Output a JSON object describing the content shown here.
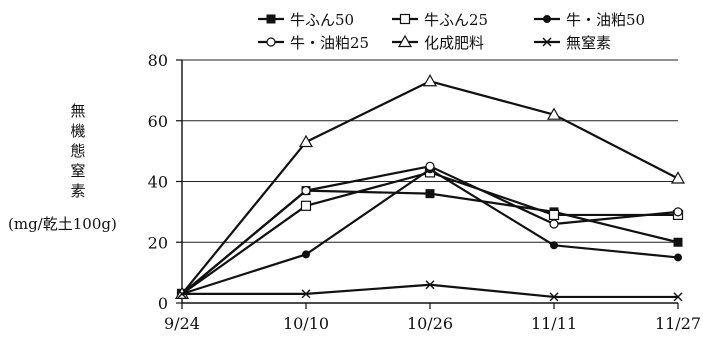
{
  "chart_data": {
    "type": "line",
    "title": "",
    "xlabel": "",
    "ylabel": "無機態窒素",
    "ylabel_unit": "(mg/乾土100g)",
    "x": [
      "9/24",
      "10/10",
      "10/26",
      "11/11",
      "11/27"
    ],
    "ylim": [
      0,
      80
    ],
    "yticks": [
      "0",
      "20",
      "40",
      "60",
      "80"
    ],
    "grid": "horizontal",
    "legend_position": "top",
    "series": [
      {
        "name": "牛ふん50",
        "marker": "filled-square",
        "values": [
          3,
          37,
          36,
          30,
          20
        ]
      },
      {
        "name": "牛ふん25",
        "marker": "open-square",
        "values": [
          3,
          32,
          43,
          29,
          29
        ]
      },
      {
        "name": "牛・油粕50",
        "marker": "filled-circle",
        "values": [
          3,
          16,
          44,
          19,
          15
        ]
      },
      {
        "name": "牛・油粕25",
        "marker": "open-circle",
        "values": [
          3,
          37,
          45,
          26,
          30
        ]
      },
      {
        "name": "化成肥料",
        "marker": "open-triangle",
        "values": [
          3,
          53,
          73,
          62,
          41
        ]
      },
      {
        "name": "無窒素",
        "marker": "cross",
        "values": [
          3,
          3,
          6,
          2,
          2
        ]
      }
    ]
  }
}
